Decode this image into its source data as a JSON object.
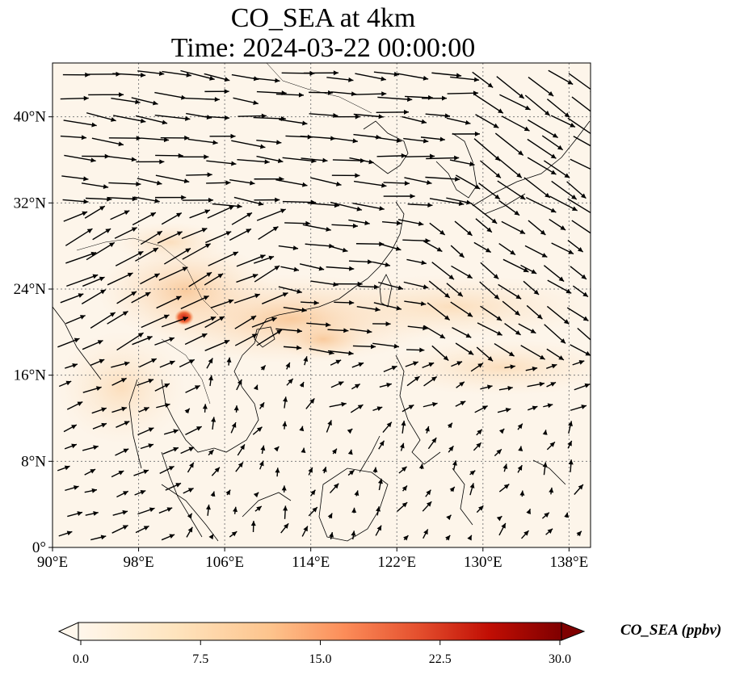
{
  "title": "CO_SEA at 4km",
  "subtitle": "Time: 2024-03-22 00:00:00",
  "map": {
    "lon_range": [
      90,
      140
    ],
    "lat_range": [
      0,
      45
    ],
    "lon_ticks": [
      "90°E",
      "98°E",
      "106°E",
      "114°E",
      "122°E",
      "130°E",
      "138°E"
    ],
    "lat_ticks": [
      "0°",
      "8°N",
      "16°N",
      "24°N",
      "32°N",
      "40°N"
    ],
    "grid": true,
    "background_color": "#fdf4e8",
    "coastline_color": "#000000"
  },
  "colorbar": {
    "label": "CO_SEA (ppbv)",
    "min": 0.0,
    "max": 30.0,
    "ticks": [
      "0.0",
      "7.5",
      "15.0",
      "22.5",
      "30.0"
    ],
    "colormap": "OrRd",
    "extend": "both"
  }
}
